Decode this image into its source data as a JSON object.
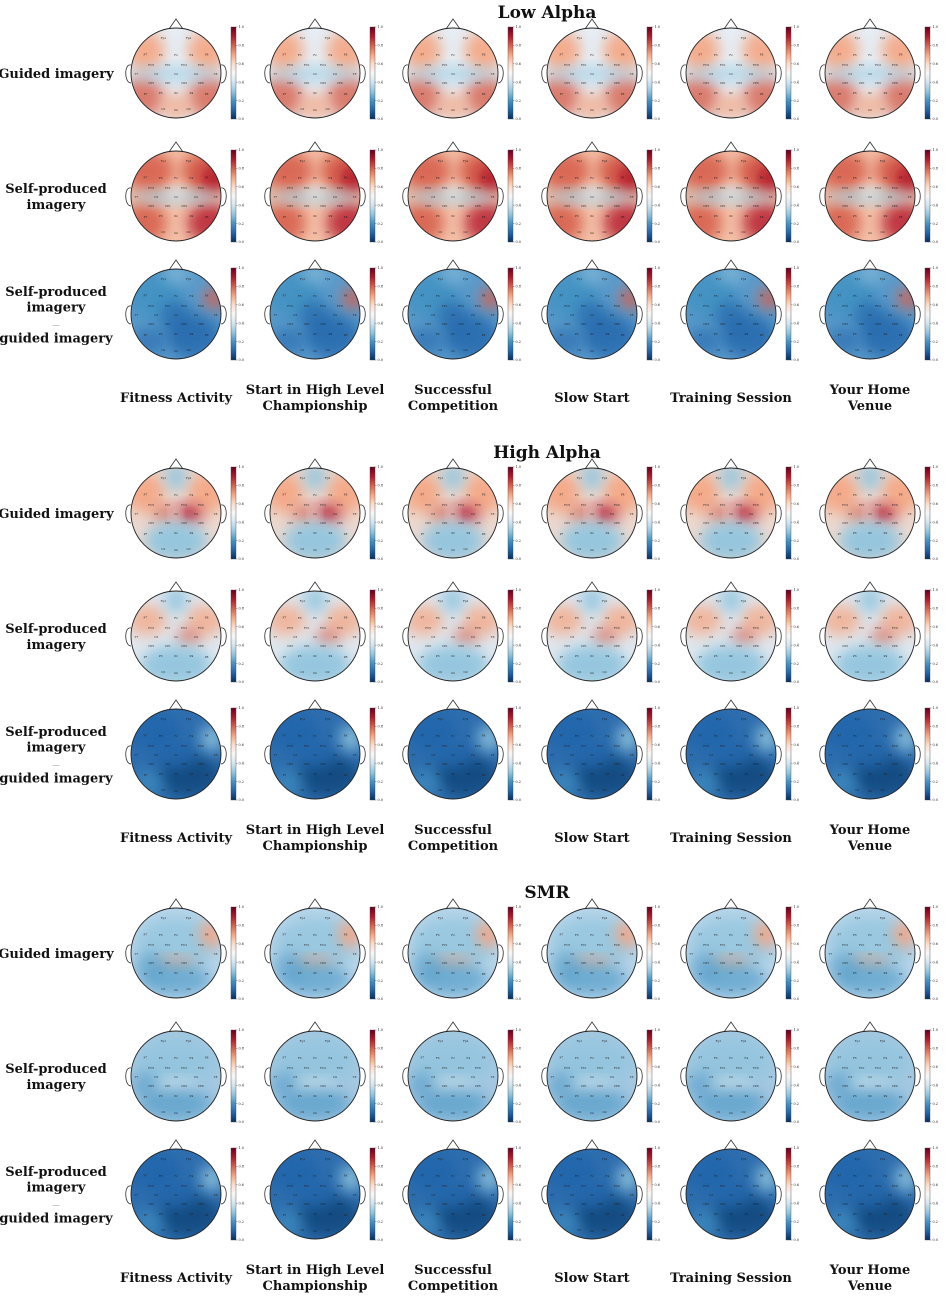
{
  "sections": [
    {
      "title": "Low Alpha",
      "rows": [
        {
          "label": [
            "Guided imagery"
          ],
          "pattern": "warm-mid"
        },
        {
          "label": [
            "Self-produced",
            "imagery"
          ],
          "pattern": "warm-strong"
        },
        {
          "label": [
            "Self-produced",
            "imagery",
            "—",
            "guided imagery"
          ],
          "pattern": "diff"
        }
      ]
    },
    {
      "title": "High Alpha",
      "rows": [
        {
          "label": [
            "Guided imagery"
          ],
          "pattern": "central-hot"
        },
        {
          "label": [
            "Self-produced",
            "imagery"
          ],
          "pattern": "central-mild"
        },
        {
          "label": [
            "Self-produced",
            "imagery",
            "—",
            "guided imagery"
          ],
          "pattern": "diff-dark"
        }
      ]
    },
    {
      "title": "SMR",
      "rows": [
        {
          "label": [
            "Guided imagery"
          ],
          "pattern": "cool-spot"
        },
        {
          "label": [
            "Self-produced",
            "imagery"
          ],
          "pattern": "cool"
        },
        {
          "label": [
            "Self-produced",
            "imagery",
            "—",
            "guided imagery"
          ],
          "pattern": "diff-dark"
        }
      ]
    }
  ],
  "columns": [
    [
      "Fitness Activity"
    ],
    [
      "Start in High Level",
      "Championship"
    ],
    [
      "Successful",
      "Competition"
    ],
    [
      "Slow Start"
    ],
    [
      "Training Session"
    ],
    [
      "Your Home",
      "Venue"
    ]
  ],
  "colorbar": {
    "ticks": [
      "0.0",
      "0.2",
      "0.4",
      "0.6",
      "0.8",
      "1.0"
    ],
    "colors": [
      "#053061",
      "#2166ac",
      "#4393c3",
      "#92c5de",
      "#d1e5f0",
      "#f7f7f7",
      "#fddbc7",
      "#f4a582",
      "#d6604d",
      "#b2182b",
      "#67001f"
    ]
  },
  "electrodes": [
    "Fp1",
    "Fp2",
    "F7",
    "F3",
    "Fz",
    "F4",
    "F8",
    "FC5",
    "FC1",
    "FC2",
    "FC6",
    "T7",
    "C3",
    "Cz",
    "C4",
    "T8",
    "CP5",
    "CP1",
    "CP2",
    "CP6",
    "P7",
    "P3",
    "Pz",
    "P4",
    "P8",
    "O1",
    "Oz",
    "O2"
  ]
}
